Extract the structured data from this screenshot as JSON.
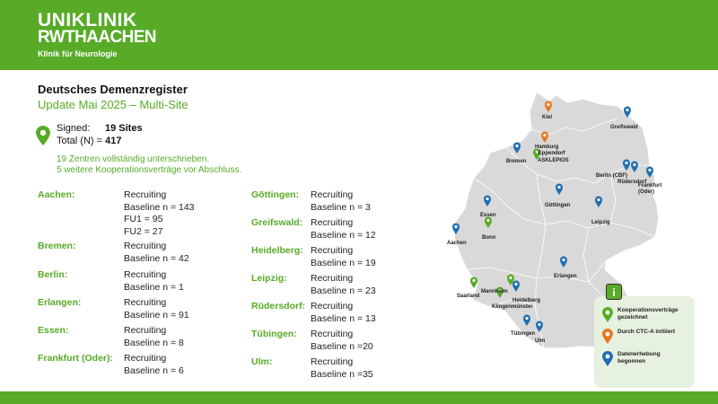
{
  "header": {
    "logo_line1": "UNIKLINIK",
    "logo_line2": "RWTHAACHEN",
    "department": "Klinik für Neurologie"
  },
  "title": "Deutsches Demenzregister",
  "subtitle": "Update Mai 2025 – Multi-Site",
  "stats": {
    "signed_label": "Signed:",
    "signed_value": "19 Sites",
    "total_label": "Total (N) = ",
    "total_value": "417"
  },
  "note": {
    "line1": "19 Zentren vollständig unterschrieben.",
    "line2": "5 weitere Kooperationsverträge vor Abschluss."
  },
  "sites_left": [
    {
      "name": "Aachen:",
      "lines": [
        "Recruiting",
        "Baseline n = 143",
        "FU1 = 95",
        "FU2 = 27"
      ]
    },
    {
      "name": "Bremen:",
      "lines": [
        "Recruiting",
        "Baseline n = 42"
      ]
    },
    {
      "name": "Berlin:",
      "lines": [
        "Recruiting",
        "Baseline n = 1"
      ]
    },
    {
      "name": "Erlangen:",
      "lines": [
        "Recruiting",
        "Baseline n = 91"
      ]
    },
    {
      "name": "Essen:",
      "lines": [
        "Recruiting",
        "Baseline n = 8"
      ]
    },
    {
      "name": "Frankfurt (Oder):",
      "lines": [
        "Recruiting",
        "Baseline n = 6"
      ]
    }
  ],
  "sites_right": [
    {
      "name": "Göttingen:",
      "lines": [
        "Recruiting",
        "Baseline n = 3"
      ]
    },
    {
      "name": "Greifswald:",
      "lines": [
        "Recruiting",
        "Baseline n = 12"
      ]
    },
    {
      "name": "Heidelberg:",
      "lines": [
        "Recruiting",
        "Baseline n = 19"
      ]
    },
    {
      "name": "Leipzig:",
      "lines": [
        "Recruiting",
        "Baseline n = 23"
      ]
    },
    {
      "name": "Rüdersdorf:",
      "lines": [
        "Recruiting",
        "Baseline n = 13"
      ]
    },
    {
      "name": "Tübingen:",
      "lines": [
        "Recruiting",
        "Baseline n =20"
      ]
    },
    {
      "name": "Ulm:",
      "lines": [
        "Recruiting",
        "Baseline n =35"
      ]
    }
  ],
  "map": {
    "cities": {
      "kiel": "Kiel",
      "greifswald": "Greifswald",
      "hamburg": "Hamburg\n- Eppendorf",
      "asklepios": "ASKLEPIOS",
      "bremen": "Bremen",
      "berlin": "Berlin (CBF)",
      "ruedersdorf": "Rüdersdorf",
      "frankfurt_oder": "Frankfurt\n(Oder)",
      "goettingen": "Göttingen",
      "essen": "Essen",
      "leipzig": "Leipzig",
      "aachen": "Aachen",
      "bonn": "Bonn",
      "erlangen": "Erlangen",
      "mannheim": "Mannheim",
      "saarland": "Saarland",
      "heidelberg": "Heidelberg",
      "klingenmuenster": "Klingenmünster",
      "tuebingen": "Tübingen",
      "ulm": "Ulm"
    }
  },
  "legend": {
    "info_symbol": "i",
    "items": [
      {
        "label": "Kooperationsverträge gezeichnet",
        "color": "#57ab27"
      },
      {
        "label": "Durch CTC-A initiiert",
        "color": "#e87722"
      },
      {
        "label": "Datenerhebung begonnen",
        "color": "#1f6fb2"
      }
    ]
  },
  "colors": {
    "brand_green": "#57ab27",
    "pin_blue": "#1f6fb2",
    "pin_orange": "#e87722",
    "map_fill": "#d9d9d9"
  }
}
